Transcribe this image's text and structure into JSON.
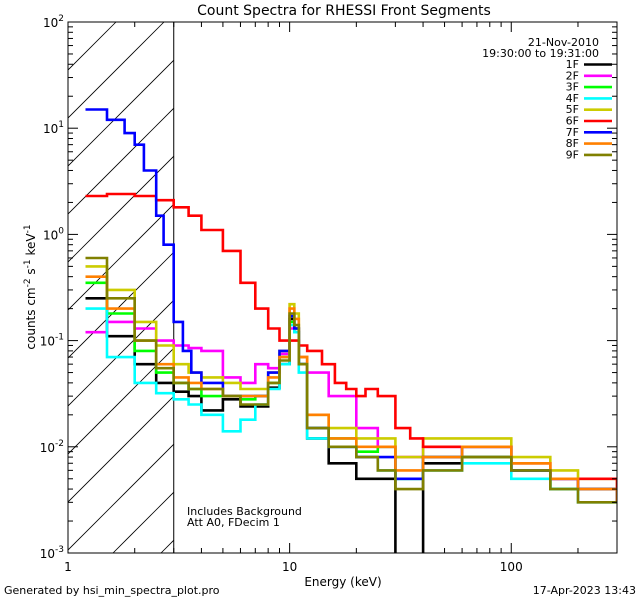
{
  "chart_data": {
    "type": "line",
    "title": "Count Spectra for RHESSI Front Segments",
    "xlabel": "Energy (keV)",
    "ylabel_parts": [
      "counts cm",
      "-2",
      " s",
      "-1",
      " keV",
      "-1"
    ],
    "xscale": "log",
    "yscale": "log",
    "xlim": [
      1,
      300
    ],
    "ylim": [
      0.001,
      100
    ],
    "x_ticks": [
      {
        "value": 1,
        "label": "1"
      },
      {
        "value": 10,
        "label": "10"
      },
      {
        "value": 100,
        "label": "100"
      }
    ],
    "y_ticks": [
      {
        "value": 0.001,
        "base": "10",
        "exp": "-3"
      },
      {
        "value": 0.01,
        "base": "10",
        "exp": "-2"
      },
      {
        "value": 0.1,
        "base": "10",
        "exp": "-1"
      },
      {
        "value": 1,
        "base": "10",
        "exp": "0"
      },
      {
        "value": 10,
        "base": "10",
        "exp": "1"
      },
      {
        "value": 100,
        "base": "10",
        "exp": "2"
      }
    ],
    "excluded_region_max_keV": 3,
    "date_label": "21-Nov-2010",
    "time_label": "19:30:00 to 19:31:00",
    "annotations": [
      "Includes Background",
      "Att A0, FDecim 1"
    ],
    "series": [
      {
        "name": "1F",
        "color": "#000000",
        "points": [
          [
            1.2,
            0.25
          ],
          [
            1.5,
            0.11
          ],
          [
            2.0,
            0.06
          ],
          [
            2.5,
            0.04
          ],
          [
            3.0,
            0.033
          ],
          [
            3.5,
            0.03
          ],
          [
            4.0,
            0.022
          ],
          [
            5.0,
            0.028
          ],
          [
            6.0,
            0.024
          ],
          [
            7.0,
            0.024
          ],
          [
            8.0,
            0.036
          ],
          [
            9.0,
            0.06
          ],
          [
            10.0,
            0.16
          ],
          [
            10.5,
            0.12
          ],
          [
            11.0,
            0.06
          ],
          [
            12.0,
            0.012
          ],
          [
            15.0,
            0.007
          ],
          [
            20.0,
            0.005
          ],
          [
            25.0,
            0.005
          ],
          [
            30.0,
            0.0009
          ],
          [
            40.0,
            0.007
          ],
          [
            60.0,
            0.008
          ],
          [
            100.0,
            0.006
          ],
          [
            150.0,
            0.004
          ],
          [
            200.0,
            0.004
          ],
          [
            300.0,
            0.003
          ]
        ]
      },
      {
        "name": "2F",
        "color": "#ff00ff",
        "points": [
          [
            1.2,
            0.12
          ],
          [
            1.5,
            0.15
          ],
          [
            2.0,
            0.13
          ],
          [
            2.5,
            0.1
          ],
          [
            3.0,
            0.09
          ],
          [
            3.5,
            0.085
          ],
          [
            4.0,
            0.08
          ],
          [
            5.0,
            0.045
          ],
          [
            6.0,
            0.04
          ],
          [
            7.0,
            0.06
          ],
          [
            8.0,
            0.055
          ],
          [
            9.0,
            0.075
          ],
          [
            10.0,
            0.13
          ],
          [
            10.5,
            0.13
          ],
          [
            11.0,
            0.07
          ],
          [
            12.0,
            0.05
          ],
          [
            15.0,
            0.03
          ],
          [
            20.0,
            0.015
          ],
          [
            25.0,
            0.01
          ],
          [
            30.0,
            0.008
          ],
          [
            40.0,
            0.01
          ],
          [
            60.0,
            0.008
          ],
          [
            100.0,
            0.006
          ],
          [
            150.0,
            0.005
          ],
          [
            200.0,
            0.004
          ],
          [
            300.0,
            0.003
          ]
        ]
      },
      {
        "name": "3F",
        "color": "#00ff00",
        "points": [
          [
            1.2,
            0.35
          ],
          [
            1.5,
            0.18
          ],
          [
            2.0,
            0.08
          ],
          [
            2.5,
            0.05
          ],
          [
            3.0,
            0.04
          ],
          [
            3.5,
            0.035
          ],
          [
            4.0,
            0.03
          ],
          [
            5.0,
            0.03
          ],
          [
            6.0,
            0.028
          ],
          [
            7.0,
            0.03
          ],
          [
            8.0,
            0.04
          ],
          [
            9.0,
            0.07
          ],
          [
            10.0,
            0.15
          ],
          [
            10.5,
            0.13
          ],
          [
            11.0,
            0.06
          ],
          [
            12.0,
            0.015
          ],
          [
            15.0,
            0.012
          ],
          [
            20.0,
            0.009
          ],
          [
            25.0,
            0.01
          ],
          [
            30.0,
            0.005
          ],
          [
            40.0,
            0.008
          ],
          [
            60.0,
            0.008
          ],
          [
            100.0,
            0.006
          ],
          [
            150.0,
            0.004
          ],
          [
            200.0,
            0.004
          ],
          [
            300.0,
            0.003
          ]
        ]
      },
      {
        "name": "4F",
        "color": "#00ffff",
        "points": [
          [
            1.2,
            0.2
          ],
          [
            1.5,
            0.07
          ],
          [
            2.0,
            0.04
          ],
          [
            2.5,
            0.032
          ],
          [
            3.0,
            0.028
          ],
          [
            3.5,
            0.025
          ],
          [
            4.0,
            0.02
          ],
          [
            5.0,
            0.014
          ],
          [
            6.0,
            0.018
          ],
          [
            7.0,
            0.025
          ],
          [
            8.0,
            0.035
          ],
          [
            9.0,
            0.06
          ],
          [
            10.0,
            0.14
          ],
          [
            10.5,
            0.12
          ],
          [
            11.0,
            0.05
          ],
          [
            12.0,
            0.012
          ],
          [
            15.0,
            0.01
          ],
          [
            20.0,
            0.008
          ],
          [
            25.0,
            0.006
          ],
          [
            30.0,
            0.005
          ],
          [
            40.0,
            0.006
          ],
          [
            60.0,
            0.007
          ],
          [
            100.0,
            0.005
          ],
          [
            150.0,
            0.004
          ],
          [
            200.0,
            0.003
          ],
          [
            300.0,
            0.003
          ]
        ]
      },
      {
        "name": "5F",
        "color": "#cccc00",
        "points": [
          [
            1.2,
            0.5
          ],
          [
            1.5,
            0.3
          ],
          [
            2.0,
            0.15
          ],
          [
            2.5,
            0.09
          ],
          [
            3.0,
            0.06
          ],
          [
            3.5,
            0.05
          ],
          [
            4.0,
            0.045
          ],
          [
            5.0,
            0.04
          ],
          [
            6.0,
            0.035
          ],
          [
            7.0,
            0.035
          ],
          [
            8.0,
            0.05
          ],
          [
            9.0,
            0.08
          ],
          [
            10.0,
            0.22
          ],
          [
            10.5,
            0.18
          ],
          [
            11.0,
            0.07
          ],
          [
            12.0,
            0.02
          ],
          [
            15.0,
            0.015
          ],
          [
            20.0,
            0.012
          ],
          [
            25.0,
            0.012
          ],
          [
            30.0,
            0.008
          ],
          [
            40.0,
            0.012
          ],
          [
            60.0,
            0.012
          ],
          [
            100.0,
            0.008
          ],
          [
            150.0,
            0.006
          ],
          [
            200.0,
            0.005
          ],
          [
            300.0,
            0.004
          ]
        ]
      },
      {
        "name": "6F",
        "color": "#ff0000",
        "points": [
          [
            1.2,
            2.3
          ],
          [
            1.5,
            2.4
          ],
          [
            2.0,
            2.3
          ],
          [
            2.5,
            2.1
          ],
          [
            3.0,
            1.8
          ],
          [
            3.5,
            1.5
          ],
          [
            4.0,
            1.1
          ],
          [
            5.0,
            0.7
          ],
          [
            6.0,
            0.35
          ],
          [
            7.0,
            0.2
          ],
          [
            8.0,
            0.13
          ],
          [
            9.0,
            0.1
          ],
          [
            10.0,
            0.1
          ],
          [
            11.0,
            0.09
          ],
          [
            12.0,
            0.08
          ],
          [
            14.0,
            0.06
          ],
          [
            16.0,
            0.04
          ],
          [
            18.0,
            0.035
          ],
          [
            20.0,
            0.03
          ],
          [
            22.0,
            0.035
          ],
          [
            25.0,
            0.03
          ],
          [
            30.0,
            0.015
          ],
          [
            35.0,
            0.012
          ],
          [
            40.0,
            0.01
          ],
          [
            60.0,
            0.01
          ],
          [
            100.0,
            0.007
          ],
          [
            150.0,
            0.005
          ],
          [
            200.0,
            0.005
          ],
          [
            300.0,
            0.004
          ]
        ]
      },
      {
        "name": "7F",
        "color": "#0000ff",
        "points": [
          [
            1.2,
            15.0
          ],
          [
            1.5,
            12.0
          ],
          [
            1.8,
            9.0
          ],
          [
            2.0,
            7.0
          ],
          [
            2.2,
            4.0
          ],
          [
            2.5,
            1.5
          ],
          [
            2.7,
            0.8
          ],
          [
            3.0,
            0.15
          ],
          [
            3.3,
            0.08
          ],
          [
            3.6,
            0.05
          ],
          [
            4.0,
            0.04
          ],
          [
            5.0,
            0.03
          ],
          [
            6.0,
            0.03
          ],
          [
            7.0,
            0.03
          ],
          [
            8.0,
            0.05
          ],
          [
            9.0,
            0.08
          ],
          [
            10.0,
            0.17
          ],
          [
            10.5,
            0.13
          ],
          [
            11.0,
            0.06
          ],
          [
            12.0,
            0.015
          ],
          [
            15.0,
            0.01
          ],
          [
            20.0,
            0.008
          ],
          [
            25.0,
            0.008
          ],
          [
            30.0,
            0.005
          ],
          [
            40.0,
            0.008
          ],
          [
            60.0,
            0.01
          ],
          [
            100.0,
            0.006
          ],
          [
            150.0,
            0.005
          ],
          [
            200.0,
            0.004
          ],
          [
            300.0,
            0.003
          ]
        ]
      },
      {
        "name": "8F",
        "color": "#ff8000",
        "points": [
          [
            1.2,
            0.4
          ],
          [
            1.5,
            0.2
          ],
          [
            2.0,
            0.1
          ],
          [
            2.5,
            0.06
          ],
          [
            3.0,
            0.045
          ],
          [
            3.5,
            0.04
          ],
          [
            4.0,
            0.035
          ],
          [
            5.0,
            0.03
          ],
          [
            6.0,
            0.03
          ],
          [
            7.0,
            0.03
          ],
          [
            8.0,
            0.045
          ],
          [
            9.0,
            0.07
          ],
          [
            10.0,
            0.2
          ],
          [
            10.5,
            0.16
          ],
          [
            11.0,
            0.07
          ],
          [
            12.0,
            0.02
          ],
          [
            15.0,
            0.012
          ],
          [
            20.0,
            0.01
          ],
          [
            25.0,
            0.01
          ],
          [
            30.0,
            0.006
          ],
          [
            40.0,
            0.008
          ],
          [
            60.0,
            0.01
          ],
          [
            100.0,
            0.007
          ],
          [
            150.0,
            0.005
          ],
          [
            200.0,
            0.004
          ],
          [
            300.0,
            0.003
          ]
        ]
      },
      {
        "name": "9F",
        "color": "#808000",
        "points": [
          [
            1.2,
            0.6
          ],
          [
            1.5,
            0.25
          ],
          [
            2.0,
            0.1
          ],
          [
            2.5,
            0.055
          ],
          [
            3.0,
            0.04
          ],
          [
            3.5,
            0.035
          ],
          [
            4.0,
            0.035
          ],
          [
            5.0,
            0.03
          ],
          [
            6.0,
            0.025
          ],
          [
            7.0,
            0.025
          ],
          [
            8.0,
            0.04
          ],
          [
            9.0,
            0.065
          ],
          [
            10.0,
            0.18
          ],
          [
            10.5,
            0.14
          ],
          [
            11.0,
            0.06
          ],
          [
            12.0,
            0.015
          ],
          [
            15.0,
            0.01
          ],
          [
            20.0,
            0.008
          ],
          [
            25.0,
            0.006
          ],
          [
            30.0,
            0.004
          ],
          [
            40.0,
            0.006
          ],
          [
            60.0,
            0.008
          ],
          [
            100.0,
            0.006
          ],
          [
            150.0,
            0.004
          ],
          [
            200.0,
            0.003
          ],
          [
            300.0,
            0.003
          ]
        ]
      }
    ]
  },
  "footer": {
    "generated_by": "Generated by hsi_min_spectra_plot.pro",
    "timestamp": "17-Apr-2023 13:43"
  }
}
